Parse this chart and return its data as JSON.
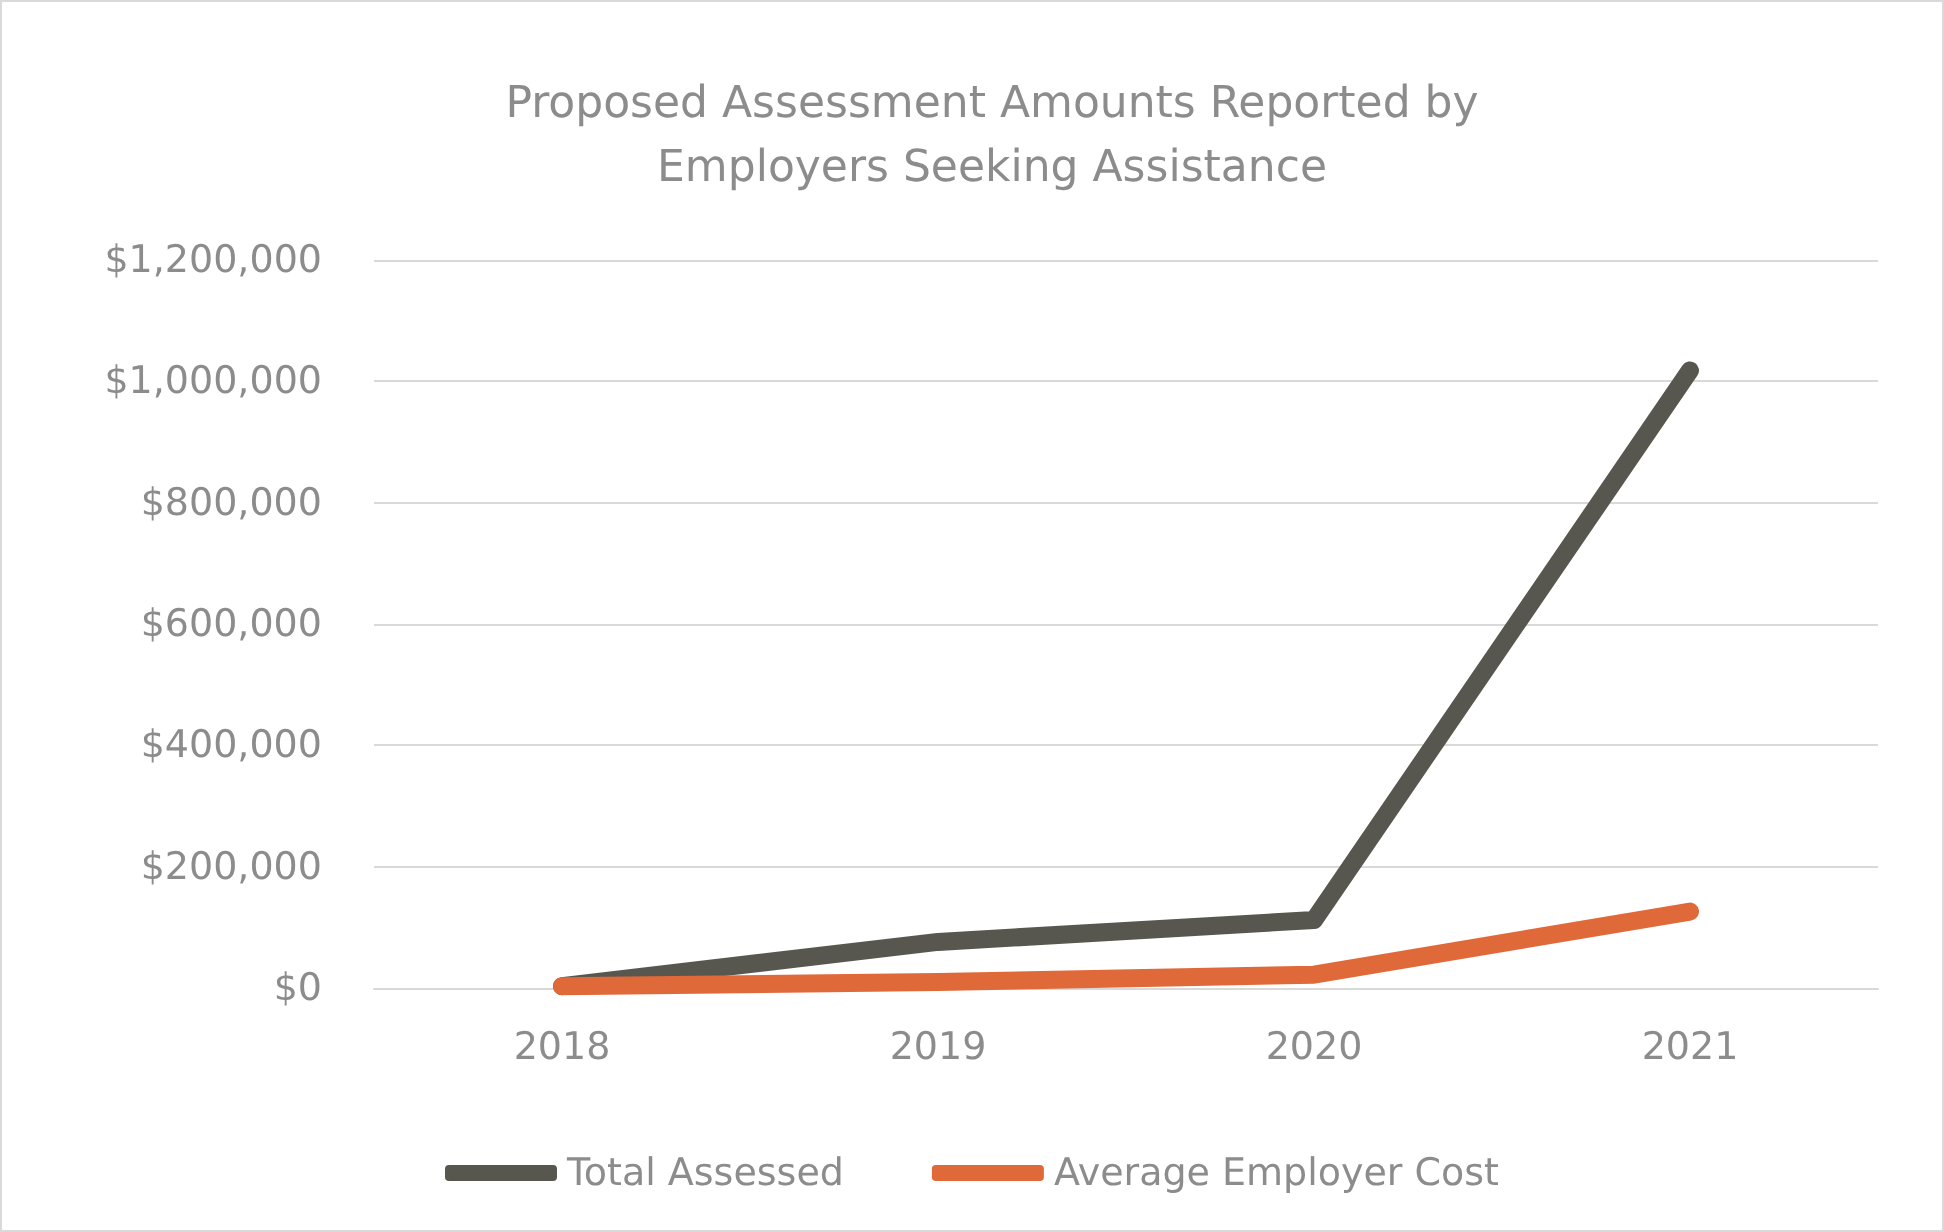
{
  "chart_data": {
    "type": "line",
    "title": "Proposed Assessment Amounts Reported by\nEmployers Seeking Assistance",
    "categories": [
      "2018",
      "2019",
      "2020",
      "2021"
    ],
    "series": [
      {
        "name": "Total Assessed",
        "color": "#58574f",
        "values": [
          3000,
          76000,
          112000,
          1018000
        ]
      },
      {
        "name": "Average Employer Cost",
        "color": "#e0693a",
        "values": [
          3000,
          10000,
          22000,
          126000
        ]
      }
    ],
    "ylim": [
      0,
      1200000
    ],
    "yticks": [
      {
        "value": 0,
        "label": "$0"
      },
      {
        "value": 200000,
        "label": "$200,000"
      },
      {
        "value": 400000,
        "label": "$400,000"
      },
      {
        "value": 600000,
        "label": "$600,000"
      },
      {
        "value": 800000,
        "label": "$800,000"
      },
      {
        "value": 1000000,
        "label": "$1,000,000"
      },
      {
        "value": 1200000,
        "label": "$1,200,000"
      }
    ],
    "grid": "y",
    "legend": "bottom",
    "marker": "none",
    "line_style": "solid"
  }
}
